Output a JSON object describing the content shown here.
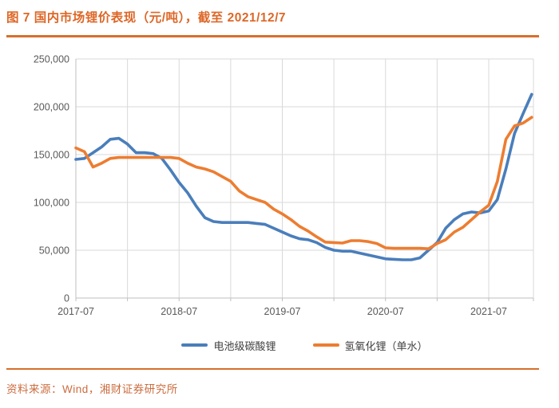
{
  "header": {
    "title": "图 7 国内市场锂价表现（元/吨），截至 2021/12/7"
  },
  "footer": {
    "source": "资料来源：Wind，湘财证券研究所"
  },
  "colors": {
    "accent_title": "#DD6727",
    "accent_rule": "#D66F2B",
    "accent_source": "#CC6C3F",
    "axis_line": "#BFBFBF",
    "grid_line": "#D9D9D9",
    "tick_text": "#595959"
  },
  "chart_data": {
    "type": "line",
    "title": "",
    "xlabel": "",
    "ylabel": "",
    "ylim": [
      0,
      250000
    ],
    "ytick_step": 50000,
    "grid": true,
    "legend_position": "bottom",
    "ytick_labels": [
      "0",
      "50,000",
      "100,000",
      "150,000",
      "200,000",
      "250,000"
    ],
    "xtick_labels": [
      "2017-07",
      "2018-07",
      "2019-07",
      "2020-07",
      "2021-07"
    ],
    "x": [
      "2017-07",
      "2017-08",
      "2017-09",
      "2017-10",
      "2017-11",
      "2017-12",
      "2018-01",
      "2018-02",
      "2018-03",
      "2018-04",
      "2018-05",
      "2018-06",
      "2018-07",
      "2018-08",
      "2018-09",
      "2018-10",
      "2018-11",
      "2018-12",
      "2019-01",
      "2019-02",
      "2019-03",
      "2019-04",
      "2019-05",
      "2019-06",
      "2019-07",
      "2019-08",
      "2019-09",
      "2019-10",
      "2019-11",
      "2019-12",
      "2020-01",
      "2020-02",
      "2020-03",
      "2020-04",
      "2020-05",
      "2020-06",
      "2020-07",
      "2020-08",
      "2020-09",
      "2020-10",
      "2020-11",
      "2020-12",
      "2021-01",
      "2021-02",
      "2021-03",
      "2021-04",
      "2021-05",
      "2021-06",
      "2021-07",
      "2021-08",
      "2021-09",
      "2021-10",
      "2021-11",
      "2021-12"
    ],
    "series": [
      {
        "name": "电池级碳酸锂",
        "color": "#4A7EBB",
        "values": [
          145000,
          146000,
          152000,
          158000,
          166000,
          167000,
          161000,
          152000,
          152000,
          151000,
          146000,
          134000,
          121000,
          110000,
          96000,
          84000,
          80000,
          79000,
          79000,
          79000,
          79000,
          78000,
          77000,
          73000,
          69000,
          65000,
          62000,
          61000,
          58000,
          53000,
          50000,
          49000,
          49000,
          47000,
          45000,
          43000,
          41000,
          40500,
          40000,
          40000,
          42000,
          50000,
          58000,
          73000,
          82000,
          88000,
          90000,
          89000,
          91000,
          103000,
          135000,
          172000,
          193000,
          213000
        ]
      },
      {
        "name": "氢氧化锂（单水）",
        "color": "#ED7D31",
        "values": [
          157000,
          153000,
          137000,
          141000,
          146000,
          147000,
          147000,
          147000,
          147000,
          147000,
          147000,
          147000,
          146000,
          141000,
          137000,
          135000,
          132000,
          127000,
          122000,
          112000,
          106000,
          103000,
          100000,
          93000,
          88000,
          82000,
          75000,
          70000,
          64000,
          58500,
          58000,
          57500,
          60000,
          60000,
          59000,
          57000,
          52500,
          52000,
          52000,
          52000,
          52000,
          51500,
          57000,
          61000,
          69000,
          74000,
          82000,
          90000,
          97000,
          122000,
          166000,
          180000,
          183000,
          189000
        ]
      }
    ]
  }
}
